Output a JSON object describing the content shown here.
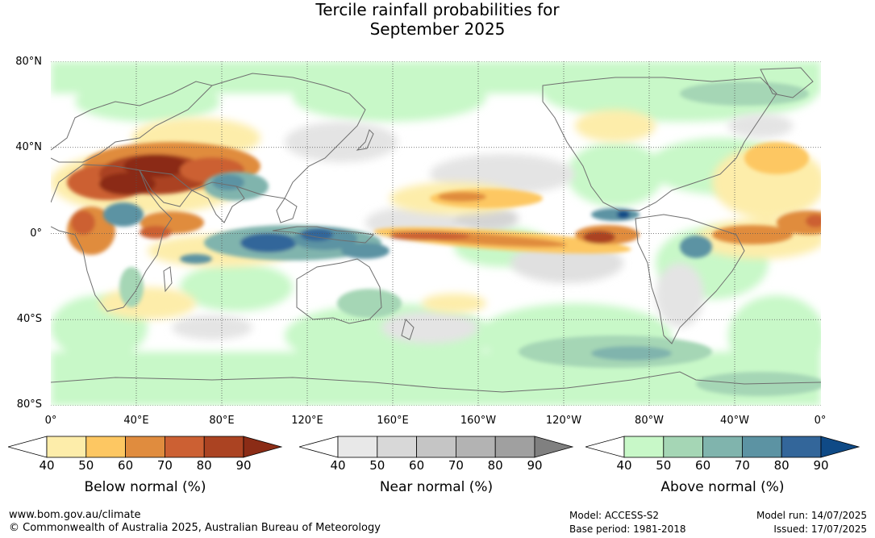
{
  "title": {
    "line1": "Tercile rainfall probabilities for",
    "line2": "September 2025"
  },
  "map": {
    "lat_labels": [
      "80°N",
      "40°N",
      "0°",
      "40°S",
      "80°S"
    ],
    "lon_labels": [
      "0°",
      "40°E",
      "80°E",
      "120°E",
      "160°E",
      "160°W",
      "120°W",
      "80°W",
      "40°W",
      "0°"
    ]
  },
  "colorbars": [
    {
      "title": "Below normal (%)",
      "ticks": [
        "40",
        "50",
        "60",
        "70",
        "80",
        "90"
      ],
      "colors": [
        "#ffffff",
        "#fdedaa",
        "#fdc762",
        "#e08c3e",
        "#cc6033",
        "#ab4322",
        "#8b2c16"
      ]
    },
    {
      "title": "Near normal (%)",
      "ticks": [
        "40",
        "50",
        "60",
        "70",
        "80",
        "90"
      ],
      "colors": [
        "#ffffff",
        "#e8e8e8",
        "#d8d8d8",
        "#c5c5c5",
        "#b3b3b3",
        "#a0a0a0",
        "#808080"
      ]
    },
    {
      "title": "Above normal (%)",
      "ticks": [
        "40",
        "50",
        "60",
        "70",
        "80",
        "90"
      ],
      "colors": [
        "#ffffff",
        "#c8f8c8",
        "#a5d6b5",
        "#80b4ad",
        "#5c93a3",
        "#33669a",
        "#0f4a86"
      ]
    }
  ],
  "footer": {
    "website": "www.bom.gov.au/climate",
    "copyright": "© Commonwealth of Australia 2025, Australian Bureau of Meteorology",
    "model": "Model: ACCESS-S2",
    "base_period": "Base period: 1981-2018",
    "model_run": "Model run: 14/07/2025",
    "issued": "Issued: 17/07/2025"
  }
}
